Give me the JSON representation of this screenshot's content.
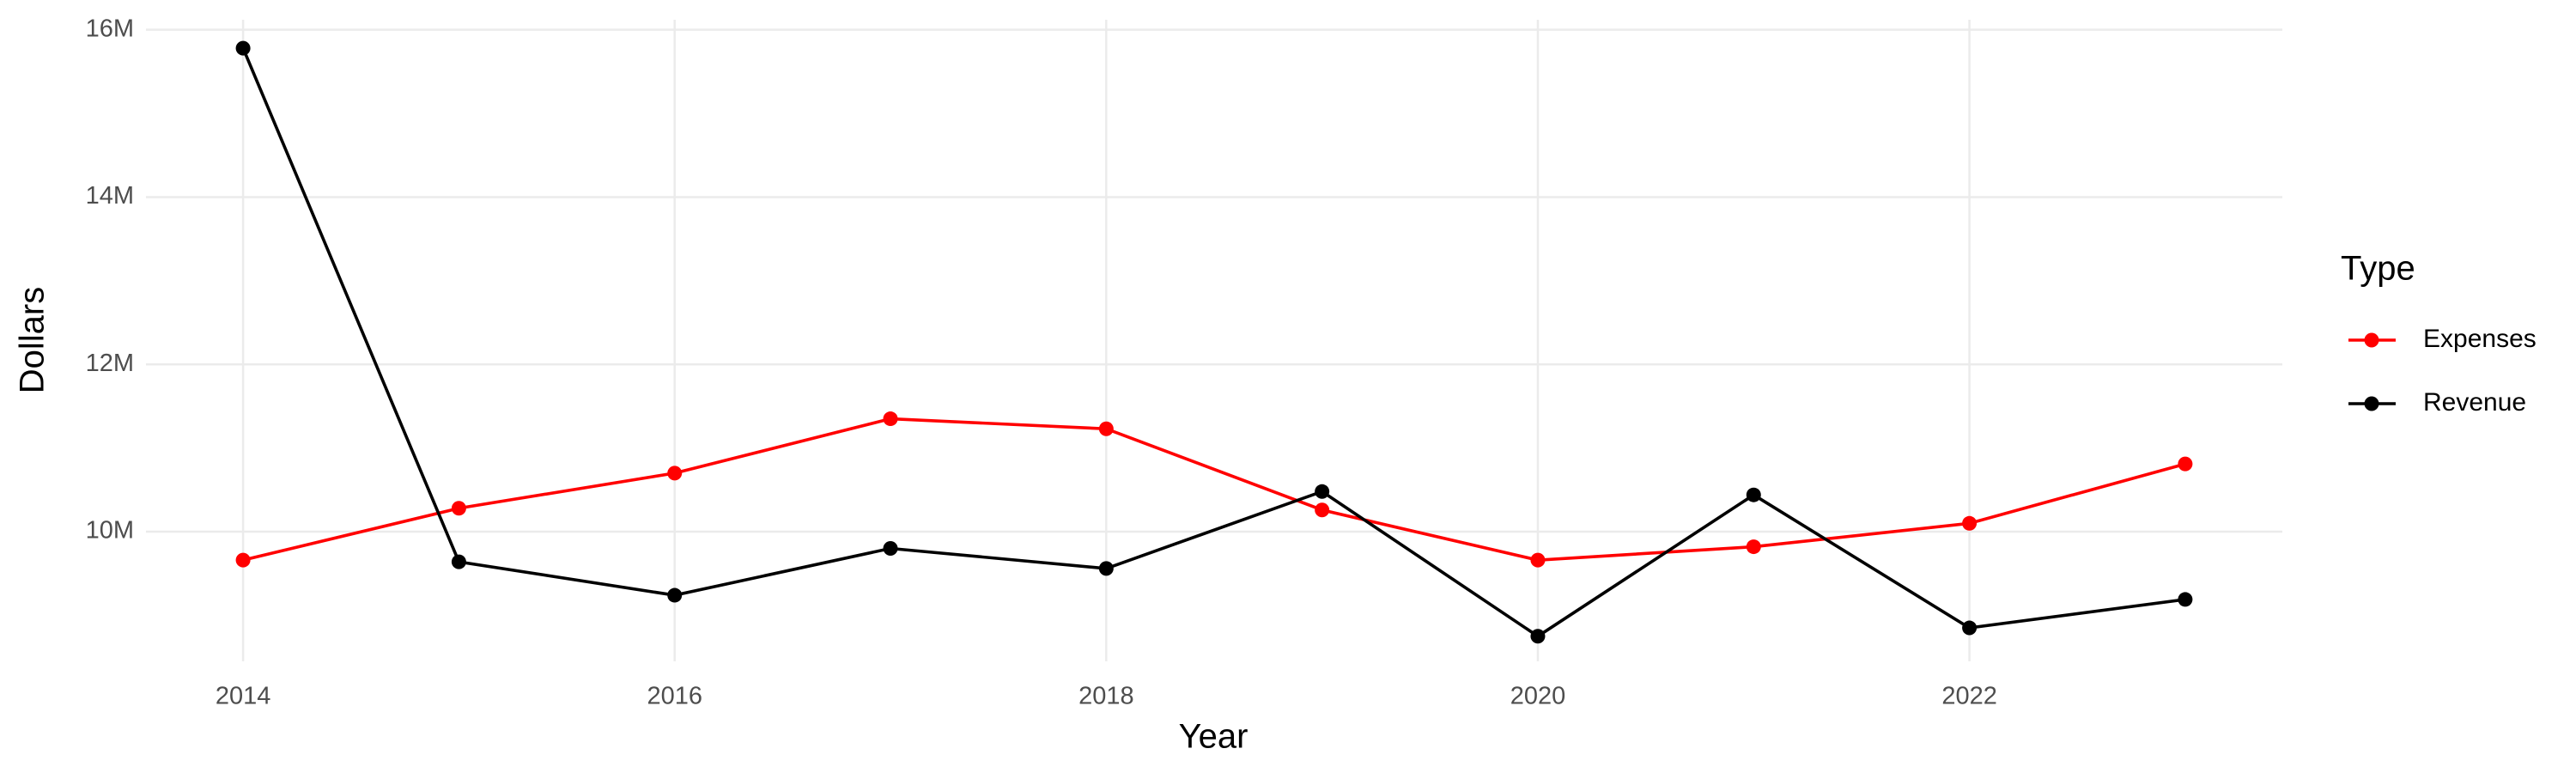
{
  "chart_data": {
    "type": "line",
    "x_label": "Year",
    "y_label": "Dollars",
    "legend_title": "Type",
    "legend": "right",
    "grid": true,
    "x": [
      2014,
      2015,
      2016,
      2017,
      2018,
      2019,
      2020,
      2021,
      2022,
      2023
    ],
    "series": [
      {
        "name": "Expenses",
        "color": "#ff0000",
        "values": [
          9660000,
          10280000,
          10700000,
          11350000,
          11230000,
          10260000,
          9660000,
          9820000,
          10100000,
          10810000
        ]
      },
      {
        "name": "Revenue",
        "color": "#000000",
        "values": [
          15780000,
          9640000,
          9240000,
          9800000,
          9560000,
          10480000,
          8750000,
          10440000,
          8850000,
          9190000
        ]
      }
    ],
    "xlim": [
      2013.55,
      2023.45
    ],
    "xticks": [
      2014,
      2016,
      2018,
      2020,
      2022
    ],
    "ylim": [
      8450000,
      16120000
    ],
    "yticks": [
      {
        "value": 10000000,
        "label": "10M"
      },
      {
        "value": 12000000,
        "label": "12M"
      },
      {
        "value": 14000000,
        "label": "14M"
      },
      {
        "value": 16000000,
        "label": "16M"
      }
    ]
  }
}
